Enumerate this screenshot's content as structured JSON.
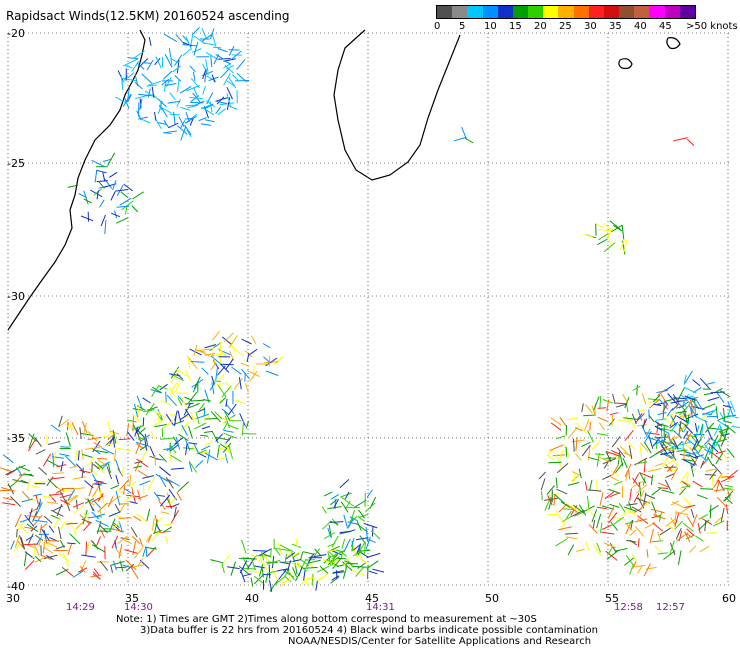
{
  "title": "Rapidsact Winds(12.5KM) 20160524 ascending",
  "legend": {
    "colors": [
      "#505050",
      "#8a8a8a",
      "#00c8ff",
      "#0090ff",
      "#1030c8",
      "#00a000",
      "#30d000",
      "#ffff00",
      "#ffb000",
      "#ff7000",
      "#ff2020",
      "#d01010",
      "#905030",
      "#c06040",
      "#ff00ff",
      "#c000c0",
      "#6000a0"
    ],
    "labels": [
      "0",
      "5",
      "10",
      "15",
      "20",
      "25",
      "30",
      "35",
      "40",
      "45",
      ">50 knots"
    ],
    "unit": "knots"
  },
  "axes": {
    "lat_labels": [
      "-20",
      "-25",
      "-30",
      "-35",
      "-40"
    ],
    "lon_labels": [
      "30",
      "35",
      "40",
      "45",
      "50",
      "55",
      "60"
    ],
    "lat_range": [
      -40,
      -20
    ],
    "lon_range": [
      30,
      60
    ],
    "grid": true
  },
  "time_labels": [
    "14:29",
    "14:30",
    "14:31",
    "12:58",
    "12:57"
  ],
  "notes": {
    "line1": "Note: 1) Times are GMT 2)Times along bottom correspond to measurement at ~30S",
    "line2": "3)Data buffer is 22 hrs from 20160524 4) Black wind barbs indicate possible contamination",
    "line3": "NOAA/NESDIS/Center for Satellite Applications and Research"
  },
  "icons": {
    "wind_barbs": "wind-barb-icon",
    "coastline": "coastline-icon"
  }
}
